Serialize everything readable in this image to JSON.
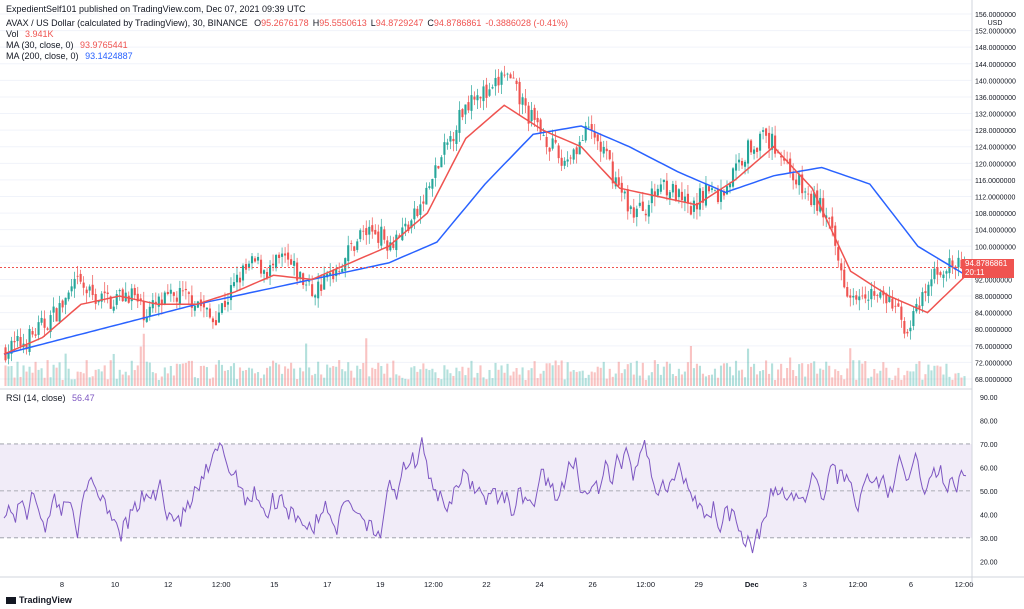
{
  "header": {
    "publish": "ExpedientSelf101 published on TradingView.com, Dec 07, 2021 09:39 UTC",
    "symbol": "AVAX / US Dollar (calculated by TradingView), 30, BINANCE",
    "ohlc": [
      {
        "label": "O",
        "value": "95.2676178"
      },
      {
        "label": "H",
        "value": "95.5550613"
      },
      {
        "label": "L",
        "value": "94.8729247"
      },
      {
        "label": "C",
        "value": "94.8786861"
      },
      {
        "label": "",
        "value": "-0.3886028 (-0.41%)"
      }
    ],
    "vol_label": "Vol",
    "vol_value": "3.941K",
    "ma30_label": "MA (30, close, 0)",
    "ma30_value": "93.9765441",
    "ma200_label": "MA (200, close, 0)",
    "ma200_value": "93.1424887",
    "rsi_label": "RSI (14, close)",
    "rsi_value": "56.47"
  },
  "price_tag": {
    "price": "94.8786861",
    "countdown": "20:11"
  },
  "footer": {
    "brand": "TradingView"
  },
  "colors": {
    "up": "#26a69a",
    "down": "#ef5350",
    "ma30": "#ef5350",
    "ma200": "#2962ff",
    "rsi": "#7e57c2",
    "rsi_band": "#ede7f6"
  },
  "chart_data": [
    {
      "type": "candlestick",
      "currency": "USD",
      "y_axis_labels": [
        "156.0000000",
        "152.0000000",
        "148.0000000",
        "144.0000000",
        "140.0000000",
        "136.0000000",
        "132.0000000",
        "128.0000000",
        "124.0000000",
        "120.0000000",
        "116.0000000",
        "112.0000000",
        "108.0000000",
        "104.0000000",
        "100.0000000",
        "96.0000000",
        "92.0000000",
        "88.0000000",
        "84.0000000",
        "80.0000000",
        "76.0000000",
        "72.0000000",
        "68.0000000"
      ],
      "ylim": [
        68,
        156
      ],
      "x_tick_labels": [
        "8",
        "10",
        "12",
        "12:00",
        "15",
        "17",
        "19",
        "12:00",
        "22",
        "24",
        "26",
        "12:00",
        "29",
        "Dec",
        "3",
        "12:00",
        "6",
        "12:00"
      ],
      "close_trend": [
        [
          0,
          75
        ],
        [
          0.02,
          77
        ],
        [
          0.04,
          81
        ],
        [
          0.06,
          86
        ],
        [
          0.075,
          91
        ],
        [
          0.09,
          88
        ],
        [
          0.11,
          87
        ],
        [
          0.13,
          89
        ],
        [
          0.145,
          84
        ],
        [
          0.16,
          86
        ],
        [
          0.18,
          88
        ],
        [
          0.2,
          87
        ],
        [
          0.215,
          82
        ],
        [
          0.23,
          87
        ],
        [
          0.245,
          93
        ],
        [
          0.26,
          96
        ],
        [
          0.275,
          94
        ],
        [
          0.29,
          97
        ],
        [
          0.305,
          93
        ],
        [
          0.32,
          89
        ],
        [
          0.335,
          92
        ],
        [
          0.35,
          96
        ],
        [
          0.37,
          103
        ],
        [
          0.385,
          104
        ],
        [
          0.4,
          101
        ],
        [
          0.415,
          104
        ],
        [
          0.43,
          108
        ],
        [
          0.445,
          116
        ],
        [
          0.46,
          124
        ],
        [
          0.475,
          132
        ],
        [
          0.49,
          138
        ],
        [
          0.505,
          136
        ],
        [
          0.52,
          142
        ],
        [
          0.535,
          136
        ],
        [
          0.55,
          130
        ],
        [
          0.565,
          126
        ],
        [
          0.58,
          120
        ],
        [
          0.595,
          124
        ],
        [
          0.61,
          128
        ],
        [
          0.625,
          122
        ],
        [
          0.64,
          114
        ],
        [
          0.655,
          108
        ],
        [
          0.67,
          110
        ],
        [
          0.685,
          116
        ],
        [
          0.7,
          112
        ],
        [
          0.715,
          108
        ],
        [
          0.73,
          114
        ],
        [
          0.745,
          112
        ],
        [
          0.76,
          118
        ],
        [
          0.775,
          124
        ],
        [
          0.79,
          126
        ],
        [
          0.805,
          124
        ],
        [
          0.82,
          118
        ],
        [
          0.835,
          112
        ],
        [
          0.85,
          110
        ],
        [
          0.86,
          104
        ],
        [
          0.87,
          95
        ],
        [
          0.88,
          89
        ],
        [
          0.895,
          90
        ],
        [
          0.91,
          88
        ],
        [
          0.925,
          86
        ],
        [
          0.94,
          80
        ],
        [
          0.955,
          86
        ],
        [
          0.97,
          94
        ],
        [
          0.98,
          95
        ],
        [
          1.0,
          95
        ]
      ],
      "ma30": [
        [
          0,
          74
        ],
        [
          0.04,
          78
        ],
        [
          0.08,
          86
        ],
        [
          0.12,
          88
        ],
        [
          0.16,
          86
        ],
        [
          0.2,
          86
        ],
        [
          0.24,
          89
        ],
        [
          0.28,
          93
        ],
        [
          0.32,
          92
        ],
        [
          0.36,
          96
        ],
        [
          0.4,
          100
        ],
        [
          0.44,
          108
        ],
        [
          0.48,
          126
        ],
        [
          0.52,
          134
        ],
        [
          0.56,
          128
        ],
        [
          0.6,
          124
        ],
        [
          0.64,
          114
        ],
        [
          0.68,
          112
        ],
        [
          0.72,
          110
        ],
        [
          0.76,
          116
        ],
        [
          0.8,
          124
        ],
        [
          0.84,
          114
        ],
        [
          0.88,
          94
        ],
        [
          0.92,
          88
        ],
        [
          0.96,
          84
        ],
        [
          1.0,
          93
        ]
      ],
      "ma200": [
        [
          0,
          74
        ],
        [
          0.1,
          80
        ],
        [
          0.2,
          86
        ],
        [
          0.3,
          91
        ],
        [
          0.4,
          96
        ],
        [
          0.45,
          101
        ],
        [
          0.5,
          115
        ],
        [
          0.55,
          127
        ],
        [
          0.6,
          129
        ],
        [
          0.65,
          124
        ],
        [
          0.7,
          118
        ],
        [
          0.75,
          113
        ],
        [
          0.8,
          117
        ],
        [
          0.85,
          119
        ],
        [
          0.9,
          115
        ],
        [
          0.95,
          100
        ],
        [
          1.0,
          93
        ]
      ]
    },
    {
      "type": "line",
      "name": "RSI (14, close)",
      "y_axis_labels": [
        "90.00",
        "80.00",
        "70.00",
        "60.00",
        "50.00",
        "40.00",
        "30.00",
        "20.00"
      ],
      "ylim": [
        15,
        90
      ],
      "bands": {
        "upper": 70,
        "middle": 50,
        "lower": 30
      },
      "last_value": 56.47
    }
  ]
}
